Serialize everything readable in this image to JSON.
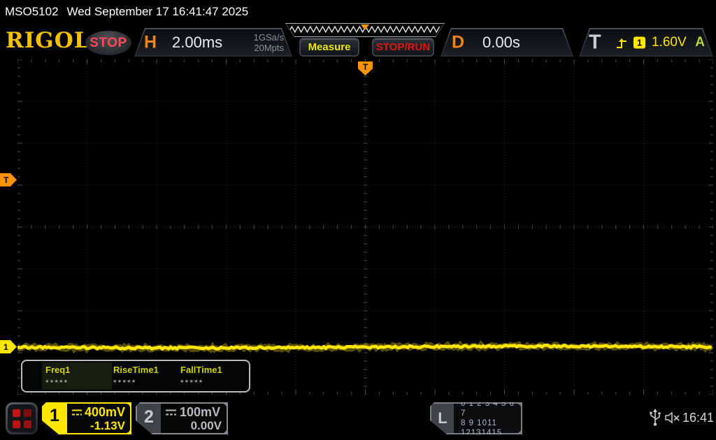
{
  "titlebar": {
    "model": "MSO5102",
    "datetime": "Wed September 17 16:41:47 2025"
  },
  "header": {
    "logo": "RIGOL",
    "run_state_badge": "STOP",
    "horizontal": {
      "label": "H",
      "timebase": "2.00ms",
      "sample_rate": "1GSa/s",
      "memory_depth": "20Mpts"
    },
    "buttons": {
      "measure": "Measure",
      "stop_run": "STOP/RUN"
    },
    "delay": {
      "label": "D",
      "value": "0.00s"
    },
    "trigger": {
      "label": "T",
      "source_channel": "1",
      "level": "1.60V",
      "sweep_mode": "A"
    }
  },
  "graticule": {
    "trigger_position_marker": "T",
    "trigger_level_marker": "T",
    "ch1_marker": "1"
  },
  "measurements": {
    "items": [
      {
        "label": "Freq1",
        "value": "*****"
      },
      {
        "label": "RiseTime1",
        "value": "*****"
      },
      {
        "label": "FallTime1",
        "value": "*****"
      }
    ]
  },
  "bottombar": {
    "ch1": {
      "number": "1",
      "scale": "400mV",
      "offset": "-1.13V"
    },
    "ch2": {
      "number": "2",
      "scale": "100mV",
      "offset": "0.00V"
    },
    "logic": {
      "label": "L",
      "row1": "0 1 2 3  4 5 6 7",
      "row2": "8 9 1011 12131415"
    },
    "clock": "16:41"
  },
  "colors": {
    "channel1_yellow": "#ffe600",
    "channel2_gray": "#b8bcc0",
    "orange_accent": "#ff9400",
    "h_letter_orange": "#ef8418",
    "stop_run_red": "#e01414",
    "stop_badge_red": "#ff4858",
    "auto_green": "#b9d434",
    "trace_yellow": "#ffe600"
  }
}
